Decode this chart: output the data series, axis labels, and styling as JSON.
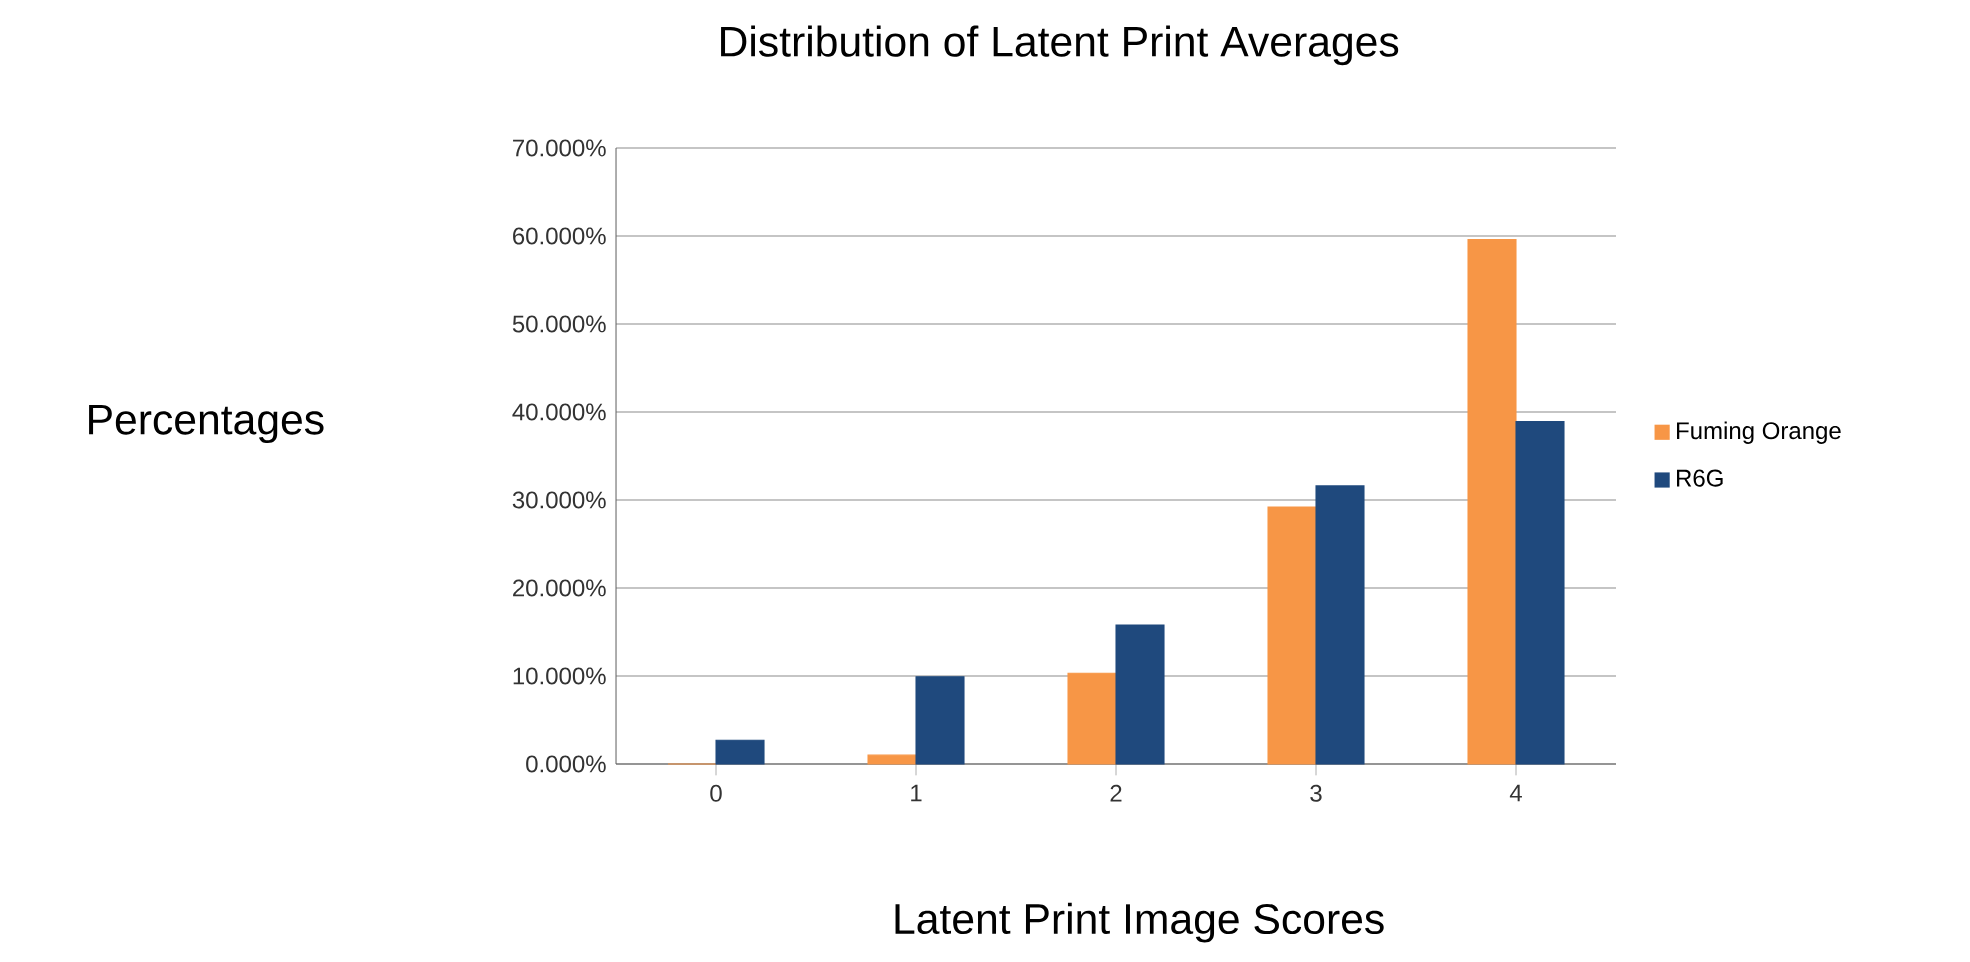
{
  "chart_data": {
    "type": "bar",
    "title": "Distribution of Latent Print Averages",
    "xlabel": "Latent Print Image Scores",
    "ylabel": "Percentages",
    "categories": [
      "0",
      "1",
      "2",
      "3",
      "4"
    ],
    "series": [
      {
        "name": "Fuming Orange",
        "color": "#f79646",
        "values": [
          0,
          1.0,
          10.3,
          29.2,
          59.6
        ]
      },
      {
        "name": "R6G",
        "color": "#1f497d",
        "values": [
          2.7,
          9.9,
          15.8,
          31.6,
          38.9
        ]
      }
    ],
    "ylim": [
      0,
      70
    ],
    "yticks": [
      {
        "value": 0,
        "label": "0.000%"
      },
      {
        "value": 10,
        "label": "10.000%"
      },
      {
        "value": 20,
        "label": "20.000%"
      },
      {
        "value": 30,
        "label": "30.000%"
      },
      {
        "value": 40,
        "label": "40.000%"
      },
      {
        "value": 50,
        "label": "50.000%"
      },
      {
        "value": 60,
        "label": "60.000%"
      },
      {
        "value": 70,
        "label": "70.000%"
      }
    ],
    "grid": "y",
    "legend": "right"
  }
}
